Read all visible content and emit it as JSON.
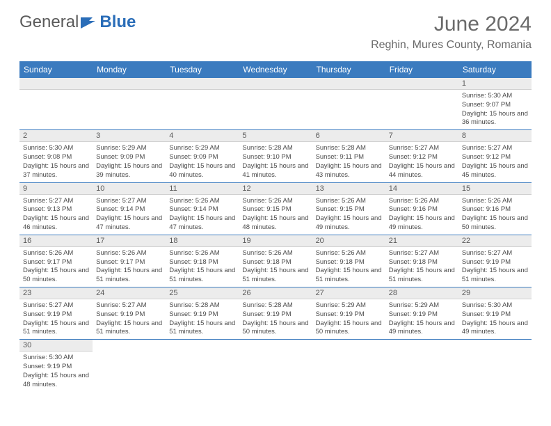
{
  "logo": {
    "part1": "General",
    "part2": "Blue"
  },
  "title": "June 2024",
  "location": "Reghin, Mures County, Romania",
  "colors": {
    "header_bg": "#3b7bbf",
    "header_text": "#ffffff",
    "daynum_bg": "#ececec",
    "text": "#4a4a4a",
    "border": "#3b7bbf"
  },
  "day_headers": [
    "Sunday",
    "Monday",
    "Tuesday",
    "Wednesday",
    "Thursday",
    "Friday",
    "Saturday"
  ],
  "weeks": [
    [
      null,
      null,
      null,
      null,
      null,
      null,
      {
        "n": "1",
        "sr": "5:30 AM",
        "ss": "9:07 PM",
        "dl": "15 hours and 36 minutes."
      }
    ],
    [
      {
        "n": "2",
        "sr": "5:30 AM",
        "ss": "9:08 PM",
        "dl": "15 hours and 37 minutes."
      },
      {
        "n": "3",
        "sr": "5:29 AM",
        "ss": "9:09 PM",
        "dl": "15 hours and 39 minutes."
      },
      {
        "n": "4",
        "sr": "5:29 AM",
        "ss": "9:09 PM",
        "dl": "15 hours and 40 minutes."
      },
      {
        "n": "5",
        "sr": "5:28 AM",
        "ss": "9:10 PM",
        "dl": "15 hours and 41 minutes."
      },
      {
        "n": "6",
        "sr": "5:28 AM",
        "ss": "9:11 PM",
        "dl": "15 hours and 43 minutes."
      },
      {
        "n": "7",
        "sr": "5:27 AM",
        "ss": "9:12 PM",
        "dl": "15 hours and 44 minutes."
      },
      {
        "n": "8",
        "sr": "5:27 AM",
        "ss": "9:12 PM",
        "dl": "15 hours and 45 minutes."
      }
    ],
    [
      {
        "n": "9",
        "sr": "5:27 AM",
        "ss": "9:13 PM",
        "dl": "15 hours and 46 minutes."
      },
      {
        "n": "10",
        "sr": "5:27 AM",
        "ss": "9:14 PM",
        "dl": "15 hours and 47 minutes."
      },
      {
        "n": "11",
        "sr": "5:26 AM",
        "ss": "9:14 PM",
        "dl": "15 hours and 47 minutes."
      },
      {
        "n": "12",
        "sr": "5:26 AM",
        "ss": "9:15 PM",
        "dl": "15 hours and 48 minutes."
      },
      {
        "n": "13",
        "sr": "5:26 AM",
        "ss": "9:15 PM",
        "dl": "15 hours and 49 minutes."
      },
      {
        "n": "14",
        "sr": "5:26 AM",
        "ss": "9:16 PM",
        "dl": "15 hours and 49 minutes."
      },
      {
        "n": "15",
        "sr": "5:26 AM",
        "ss": "9:16 PM",
        "dl": "15 hours and 50 minutes."
      }
    ],
    [
      {
        "n": "16",
        "sr": "5:26 AM",
        "ss": "9:17 PM",
        "dl": "15 hours and 50 minutes."
      },
      {
        "n": "17",
        "sr": "5:26 AM",
        "ss": "9:17 PM",
        "dl": "15 hours and 51 minutes."
      },
      {
        "n": "18",
        "sr": "5:26 AM",
        "ss": "9:18 PM",
        "dl": "15 hours and 51 minutes."
      },
      {
        "n": "19",
        "sr": "5:26 AM",
        "ss": "9:18 PM",
        "dl": "15 hours and 51 minutes."
      },
      {
        "n": "20",
        "sr": "5:26 AM",
        "ss": "9:18 PM",
        "dl": "15 hours and 51 minutes."
      },
      {
        "n": "21",
        "sr": "5:27 AM",
        "ss": "9:18 PM",
        "dl": "15 hours and 51 minutes."
      },
      {
        "n": "22",
        "sr": "5:27 AM",
        "ss": "9:19 PM",
        "dl": "15 hours and 51 minutes."
      }
    ],
    [
      {
        "n": "23",
        "sr": "5:27 AM",
        "ss": "9:19 PM",
        "dl": "15 hours and 51 minutes."
      },
      {
        "n": "24",
        "sr": "5:27 AM",
        "ss": "9:19 PM",
        "dl": "15 hours and 51 minutes."
      },
      {
        "n": "25",
        "sr": "5:28 AM",
        "ss": "9:19 PM",
        "dl": "15 hours and 51 minutes."
      },
      {
        "n": "26",
        "sr": "5:28 AM",
        "ss": "9:19 PM",
        "dl": "15 hours and 50 minutes."
      },
      {
        "n": "27",
        "sr": "5:29 AM",
        "ss": "9:19 PM",
        "dl": "15 hours and 50 minutes."
      },
      {
        "n": "28",
        "sr": "5:29 AM",
        "ss": "9:19 PM",
        "dl": "15 hours and 49 minutes."
      },
      {
        "n": "29",
        "sr": "5:30 AM",
        "ss": "9:19 PM",
        "dl": "15 hours and 49 minutes."
      }
    ],
    [
      {
        "n": "30",
        "sr": "5:30 AM",
        "ss": "9:19 PM",
        "dl": "15 hours and 48 minutes."
      },
      null,
      null,
      null,
      null,
      null,
      null
    ]
  ],
  "labels": {
    "sunrise": "Sunrise:",
    "sunset": "Sunset:",
    "daylight": "Daylight:"
  }
}
